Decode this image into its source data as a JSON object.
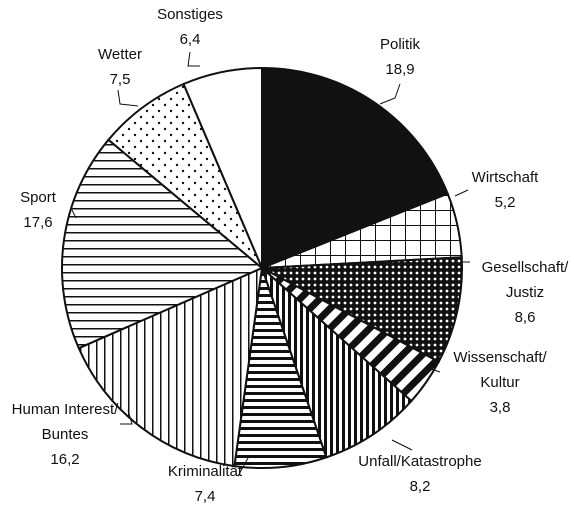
{
  "chart_data": {
    "type": "pie",
    "categories": [
      [
        "Politik"
      ],
      [
        "Wirtschaft"
      ],
      [
        "Gesellschaft/",
        "Justiz"
      ],
      [
        "Wissenschaft/",
        "Kultur"
      ],
      [
        "Unfall/Katastrophe"
      ],
      [
        "Kriminalität"
      ],
      [
        "Human Interest/",
        "Buntes"
      ],
      [
        "Sport"
      ],
      [
        "Wetter"
      ],
      [
        "Sonstiges"
      ]
    ],
    "values": [
      18.9,
      5.2,
      8.6,
      3.8,
      8.2,
      7.4,
      16.2,
      17.6,
      7.5,
      6.4
    ],
    "value_labels": [
      "18,9",
      "5,2",
      "8,6",
      "3,8",
      "8,2",
      "7,4",
      "16,2",
      "17,6",
      "7,5",
      "6,4"
    ],
    "patterns": [
      "solid",
      "grid",
      "crosshatch",
      "diagonal",
      "vertical-stripes",
      "horizontal-stripes",
      "vertical-lines",
      "horizontal-lines",
      "dots",
      "none"
    ]
  }
}
